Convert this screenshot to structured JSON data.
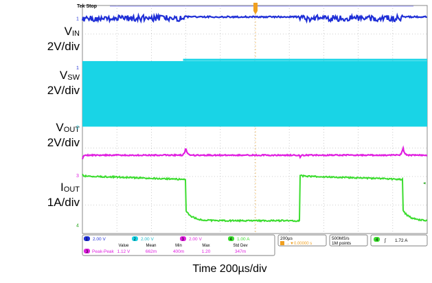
{
  "chart_data": {
    "type": "line",
    "instrument": {
      "brand": "Tek",
      "state": "Stop"
    },
    "channels": [
      {
        "id": "ch1",
        "name": "V_IN",
        "label_main": "V",
        "label_sub": "IN",
        "scale_label": "2V/div",
        "scale": "2.00 V",
        "color": "#1f2fd6",
        "marker": "1",
        "description_values": {
          "baseline_div": 0,
          "ripple_div": 0.08
        }
      },
      {
        "id": "ch2",
        "name": "V_SW",
        "label_main": "V",
        "label_sub": "SW",
        "scale_label": "2V/div",
        "scale": "2.00 V",
        "color": "#19d4e6",
        "marker": "2",
        "description_values": {
          "low_div": 0,
          "high_div": 2.4
        }
      },
      {
        "id": "ch3",
        "name": "V_OUT",
        "label_main": "V",
        "label_sub": "OUT",
        "scale_label": "2V/div",
        "scale": "2.00 V",
        "color": "#e01ee0",
        "marker": "3"
      },
      {
        "id": "ch4",
        "name": "I_OUT",
        "label_main": "I",
        "label_sub": "OUT",
        "scale_label": "1A/div",
        "scale": "1.00 A",
        "color": "#3bdc2e",
        "marker": "4",
        "high_level_A": 1.72,
        "low_level_A": 0.2
      }
    ],
    "timebase": "200µs",
    "trigger_position": "0.00000 s",
    "sample_rate": "500MS/s",
    "record_length": "1M points",
    "trigger": {
      "channel": "4",
      "slope": "rising",
      "level": "1.72 A"
    },
    "measurement": {
      "channel": "3",
      "name": "Peak-Peak",
      "headers": [
        "Value",
        "Mean",
        "Min",
        "Max",
        "Std Dev"
      ],
      "values": [
        "1.12 V",
        "662m",
        "400m",
        "1.20",
        "347m"
      ]
    },
    "load_steps_time_us": [
      {
        "start": 600,
        "end": 1260
      }
    ],
    "grid": true,
    "xlabel": "Time  200µs/div"
  }
}
